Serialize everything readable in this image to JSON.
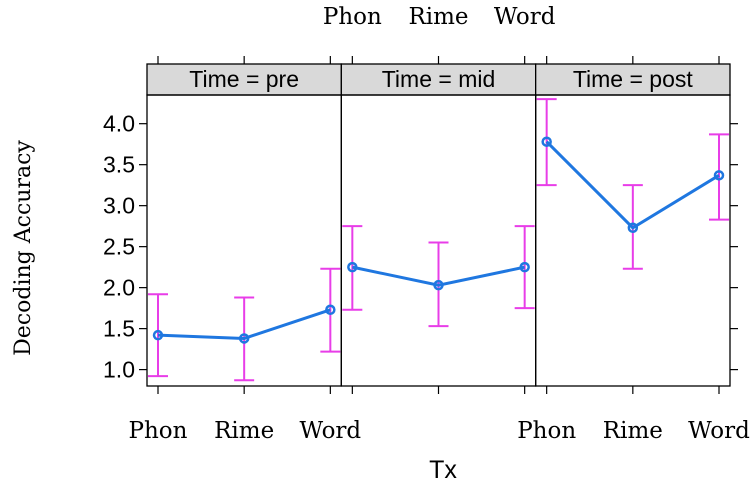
{
  "chart_data": {
    "type": "line",
    "xlabel": "Tx",
    "ylabel": "Decoding Accuracy",
    "categories": [
      "Phon",
      "Rime",
      "Word"
    ],
    "ylim": [
      0.8,
      4.35
    ],
    "yticks": [
      "1.0",
      "1.5",
      "2.0",
      "2.5",
      "3.0",
      "3.5",
      "4.0"
    ],
    "colors": {
      "line": "#1f77e0",
      "errorbar": "#e83de8",
      "strip": "#d9d9d9"
    },
    "panels": [
      {
        "strip": "Time = pre",
        "values": [
          1.42,
          1.38,
          1.73
        ],
        "lower": [
          0.92,
          0.87,
          1.22
        ],
        "upper": [
          1.92,
          1.88,
          2.23
        ]
      },
      {
        "strip": "Time = mid",
        "values": [
          2.25,
          2.03,
          2.25
        ],
        "lower": [
          1.73,
          1.53,
          1.75
        ],
        "upper": [
          2.75,
          2.55,
          2.75
        ]
      },
      {
        "strip": "Time = post",
        "values": [
          3.78,
          2.73,
          3.37
        ],
        "lower": [
          3.25,
          2.23,
          2.83
        ],
        "upper": [
          4.3,
          3.25,
          3.87
        ]
      }
    ],
    "top_ticklabels": [
      "Phon",
      "Rime",
      "Word"
    ],
    "bottom_ticklabels_left": [
      "Phon",
      "Rime",
      "Word"
    ],
    "bottom_ticklabels_right": [
      "Phon",
      "Rime",
      "Word"
    ],
    "grid": false,
    "legend": "none"
  }
}
